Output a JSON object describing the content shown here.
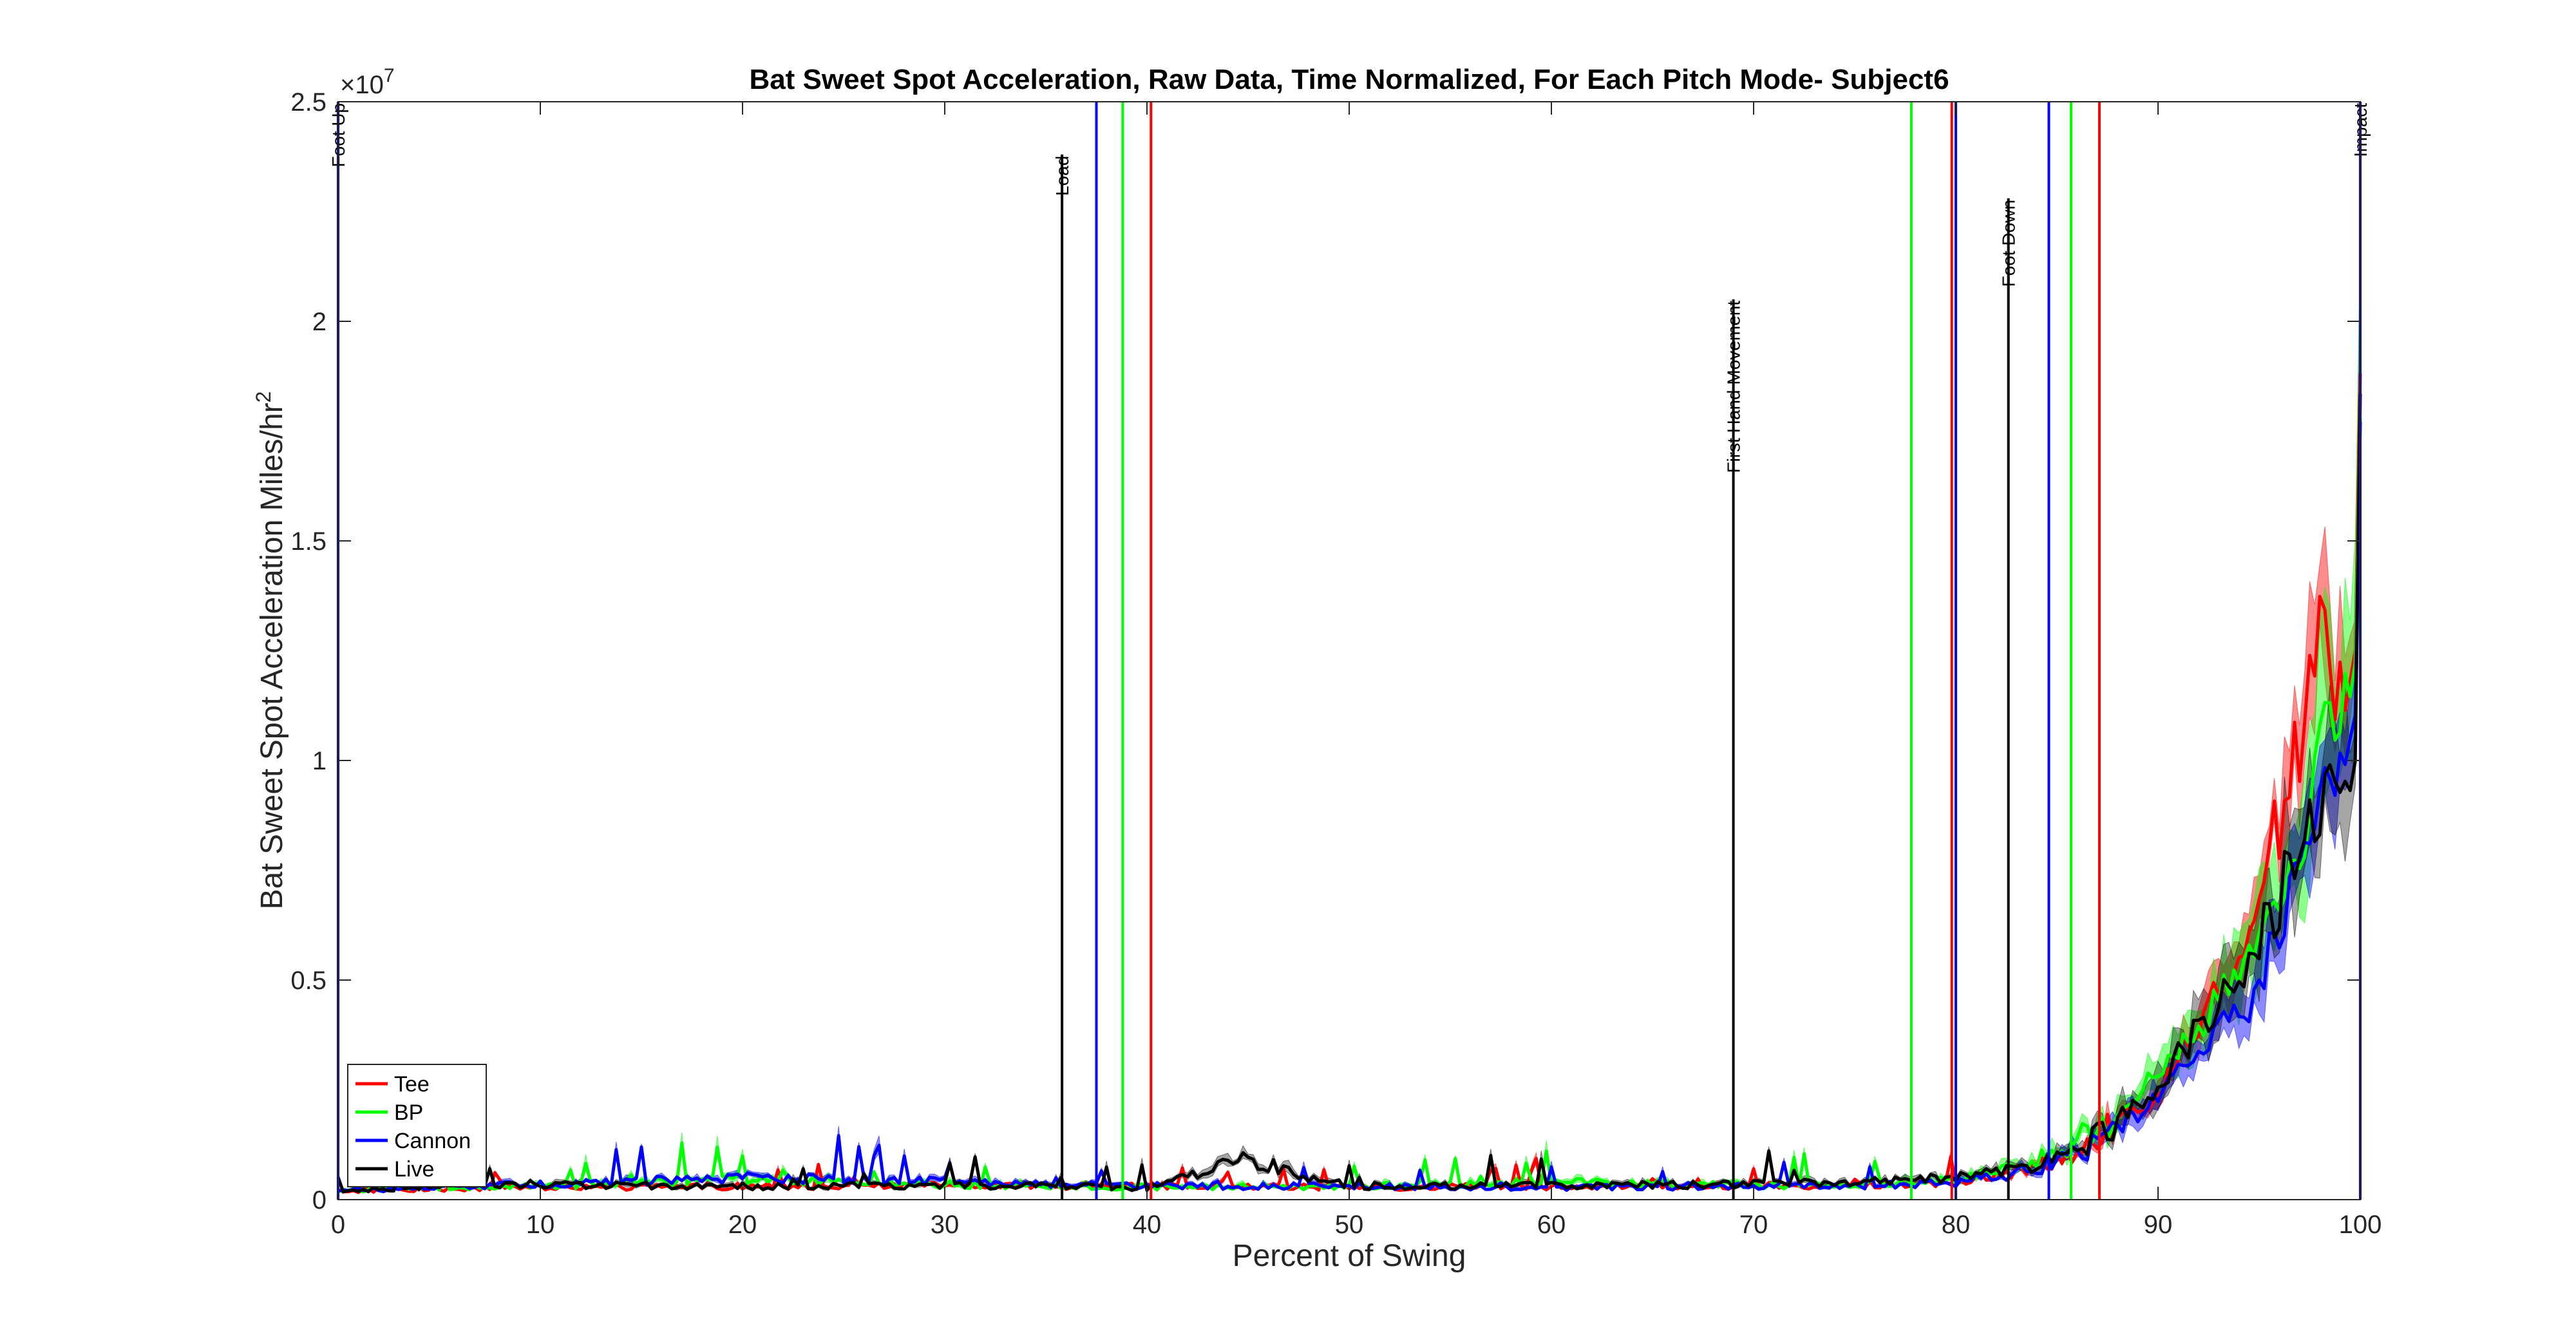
{
  "chart_data": {
    "type": "line",
    "title": "Bat Sweet Spot Acceleration, Raw Data, Time Normalized, For Each Pitch Mode- Subject6",
    "xlabel": "Percent of Swing",
    "ylabel_main": "Bat Sweet Spot Acceleration Miles/hr",
    "ylabel_sup": "2",
    "y_exponent_label": "×10",
    "y_exponent_sup": "7",
    "xlim": [
      0,
      100
    ],
    "ylim": [
      0,
      25000000
    ],
    "x_ticks": [
      0,
      10,
      20,
      30,
      40,
      50,
      60,
      70,
      80,
      90,
      100
    ],
    "x_tick_labels": [
      "0",
      "10",
      "20",
      "30",
      "40",
      "50",
      "60",
      "70",
      "80",
      "90",
      "100"
    ],
    "y_ticks": [
      0,
      5000000,
      10000000,
      15000000,
      20000000,
      25000000
    ],
    "y_tick_labels": [
      "0",
      "0.5",
      "1",
      "1.5",
      "2",
      "2.5"
    ],
    "grid": false,
    "legend_position": "bottom-left",
    "series": [
      {
        "name": "Tee",
        "color": "#ff0000",
        "anchors": [
          [
            0,
            200000
          ],
          [
            5,
            250000
          ],
          [
            10,
            280000
          ],
          [
            20,
            300000
          ],
          [
            30,
            320000
          ],
          [
            40,
            300000
          ],
          [
            50,
            280000
          ],
          [
            60,
            300000
          ],
          [
            70,
            320000
          ],
          [
            75,
            330000
          ],
          [
            80,
            400000
          ],
          [
            84,
            700000
          ],
          [
            87,
            1400000
          ],
          [
            90,
            2400000
          ],
          [
            93,
            4800000
          ],
          [
            95,
            6800000
          ],
          [
            97,
            10500000
          ],
          [
            98,
            13300000
          ],
          [
            99,
            11800000
          ],
          [
            99.7,
            10500000
          ],
          [
            100,
            18000000
          ]
        ],
        "band": 0.22
      },
      {
        "name": "BP",
        "color": "#00ff00",
        "anchors": [
          [
            0,
            220000
          ],
          [
            5,
            260000
          ],
          [
            10,
            300000
          ],
          [
            20,
            450000
          ],
          [
            30,
            350000
          ],
          [
            40,
            280000
          ],
          [
            50,
            300000
          ],
          [
            60,
            400000
          ],
          [
            70,
            330000
          ],
          [
            75,
            350000
          ],
          [
            80,
            450000
          ],
          [
            84,
            900000
          ],
          [
            87,
            1600000
          ],
          [
            90,
            2800000
          ],
          [
            93,
            4500000
          ],
          [
            95,
            5800000
          ],
          [
            97,
            8200000
          ],
          [
            98,
            10000000
          ],
          [
            99,
            11000000
          ],
          [
            99.7,
            10800000
          ],
          [
            100,
            17500000
          ]
        ],
        "band": 0.3
      },
      {
        "name": "Cannon",
        "color": "#0000ff",
        "anchors": [
          [
            0,
            200000
          ],
          [
            5,
            280000
          ],
          [
            10,
            350000
          ],
          [
            20,
            500000
          ],
          [
            30,
            400000
          ],
          [
            40,
            320000
          ],
          [
            50,
            300000
          ],
          [
            60,
            280000
          ],
          [
            70,
            300000
          ],
          [
            75,
            320000
          ],
          [
            80,
            380000
          ],
          [
            84,
            700000
          ],
          [
            87,
            1300000
          ],
          [
            90,
            2300000
          ],
          [
            93,
            3800000
          ],
          [
            95,
            4800000
          ],
          [
            97,
            7500000
          ],
          [
            98,
            9000000
          ],
          [
            99,
            10000000
          ],
          [
            99.7,
            9800000
          ],
          [
            100,
            17800000
          ]
        ],
        "band": 0.25
      },
      {
        "name": "Live",
        "color": "#000000",
        "anchors": [
          [
            0,
            200000
          ],
          [
            5,
            300000
          ],
          [
            10,
            350000
          ],
          [
            20,
            300000
          ],
          [
            30,
            330000
          ],
          [
            40,
            280000
          ],
          [
            45,
            900000
          ],
          [
            50,
            300000
          ],
          [
            60,
            320000
          ],
          [
            70,
            350000
          ],
          [
            75,
            400000
          ],
          [
            80,
            500000
          ],
          [
            84,
            750000
          ],
          [
            87,
            1400000
          ],
          [
            90,
            2600000
          ],
          [
            93,
            4500000
          ],
          [
            95,
            5800000
          ],
          [
            97,
            8000000
          ],
          [
            98,
            9200000
          ],
          [
            99,
            9800000
          ],
          [
            99.7,
            9200000
          ],
          [
            100,
            18500000
          ]
        ],
        "band": 0.28
      }
    ],
    "events": [
      {
        "label": "Foot Up",
        "x": 0,
        "color": "#0000ff",
        "label_y": 25000000
      },
      {
        "label": "Load",
        "x": 35.8,
        "color": "#000000",
        "label_y": 23800000
      },
      {
        "label": "",
        "x": 37.5,
        "color": "#0000ff"
      },
      {
        "label": "",
        "x": 38.8,
        "color": "#00ff00"
      },
      {
        "label": "",
        "x": 40.2,
        "color": "#ff0000"
      },
      {
        "label": "First Hand Movement",
        "x": 69,
        "color": "#000000",
        "label_y": 20500000
      },
      {
        "label": "",
        "x": 77.8,
        "color": "#00ff00"
      },
      {
        "label": "",
        "x": 79.8,
        "color": "#ff0000"
      },
      {
        "label": "",
        "x": 80,
        "color": "#0000ff"
      },
      {
        "label": "Foot Down",
        "x": 82.6,
        "color": "#000000",
        "label_y": 22800000
      },
      {
        "label": "",
        "x": 84.6,
        "color": "#0000ff"
      },
      {
        "label": "",
        "x": 85.7,
        "color": "#00ff00"
      },
      {
        "label": "",
        "x": 87.1,
        "color": "#ff0000"
      },
      {
        "label": "Impact",
        "x": 100,
        "color": "#0000ff",
        "label_y": 25000000
      }
    ]
  }
}
